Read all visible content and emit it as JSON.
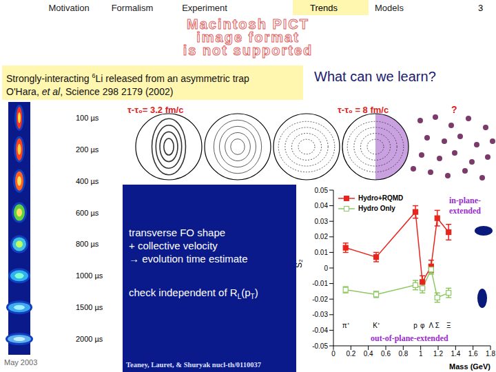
{
  "header": {
    "nav": [
      "Motivation",
      "Formalism",
      "Experiment",
      "Trends",
      "Models"
    ],
    "active": "Trends",
    "page": "3"
  },
  "placeholder": [
    "Macintosh PICT",
    "image format",
    "is not supported"
  ],
  "citation": {
    "line1_pre": "Strongly-interacting ",
    "isotope": "6",
    "line1_post": "Li released from an asymmetric trap",
    "line2_pre": "O'Hara, ",
    "et_al": "et al",
    "line2_post": ", Science 298 2179 (2002)"
  },
  "question": "What can we learn?",
  "trap_times": [
    "100 µs",
    "200 µs",
    "400 µs",
    "600 µs",
    "800 µs",
    "1000 µs",
    "1500 µs",
    "2000 µs"
  ],
  "contour_labels": [
    "τ-τ₀= 3.2 fm/c",
    "τ-τ₀ = 8 fm/c",
    "?"
  ],
  "notes": [
    "transverse FO shape",
    "+ collective velocity",
    "→ evolution time estimate"
  ],
  "check": [
    "check independent of R",
    "L",
    "(p",
    "T",
    ")"
  ],
  "footer": {
    "date": "May 2003",
    "credit": "Teaney, Lauret, & Shuryak nucl-th/0110037"
  },
  "chart_data": {
    "type": "line",
    "x": [
      0.14,
      0.49,
      0.94,
      1.02,
      1.12,
      1.19,
      1.32
    ],
    "point_labels": [
      "π⁺",
      "K⁺",
      "p",
      "φ",
      "Λ",
      "Σ",
      "Ξ"
    ],
    "series": [
      {
        "name": "Hydro+RQMD",
        "color": "#e8251c",
        "marker": "square",
        "values": [
          0.013,
          0.007,
          0.036,
          -0.009,
          0.001,
          0.032,
          0.023
        ],
        "errors": [
          0.003,
          0.003,
          0.004,
          0.004,
          0.004,
          0.005,
          0.005
        ]
      },
      {
        "name": "Hydro Only",
        "color": "#8cc860",
        "marker": "open_square",
        "values": [
          -0.014,
          -0.017,
          -0.011,
          -0.013,
          -0.001,
          -0.019,
          -0.016
        ],
        "errors": [
          0.002,
          0.002,
          0.003,
          0.003,
          0.003,
          0.003,
          0.003
        ]
      }
    ],
    "xlabel": "Mass (GeV)",
    "ylabel": "S₂",
    "xlim": [
      0,
      1.8
    ],
    "xticks": [
      0,
      0.2,
      0.4,
      0.6,
      0.8,
      1,
      1.2,
      1.4,
      1.6,
      1.8
    ],
    "ylim": [
      -0.05,
      0.05
    ],
    "yticks": [
      -0.05,
      -0.04,
      -0.03,
      -0.02,
      -0.01,
      0,
      0.01,
      0.02,
      0.03,
      0.04,
      0.05
    ],
    "annotations": [
      "in-plane-extended",
      "out-of-plane-extended"
    ],
    "legend": "top-left"
  }
}
